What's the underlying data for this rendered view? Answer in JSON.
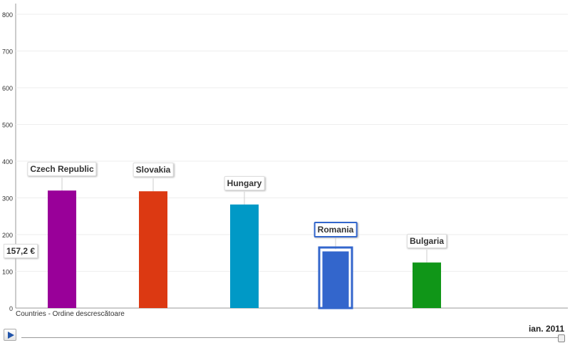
{
  "chart_data": {
    "type": "bar",
    "categories": [
      "Czech Republic",
      "Slovakia",
      "Hungary",
      "Romania",
      "Bulgaria"
    ],
    "values": [
      320,
      318,
      282,
      157.2,
      124
    ],
    "colors": [
      "#990099",
      "#dc3912",
      "#0099c6",
      "#3366cc",
      "#109618"
    ],
    "selected": "Romania",
    "selected_value_label": "157,2 €",
    "ylim": [
      0,
      800
    ],
    "yticks": [
      0,
      100,
      200,
      300,
      400,
      500,
      600,
      700,
      800
    ],
    "grid": true,
    "xlabel": "Countries - Ordine descrescătoare",
    "time_label": "ian. 2011",
    "time_progress": 1.0
  }
}
